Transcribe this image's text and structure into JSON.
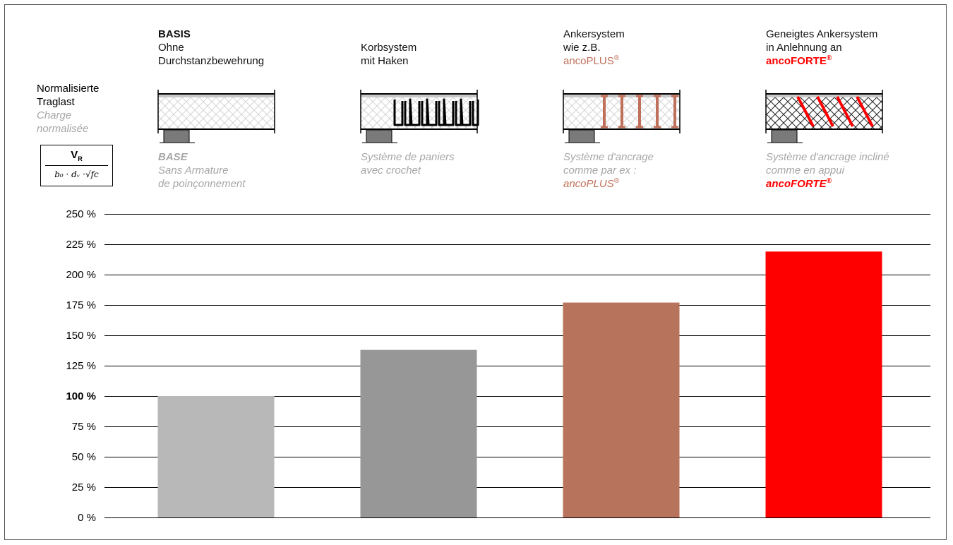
{
  "chart_data": {
    "type": "bar",
    "ylabel": {
      "de_lines": [
        "Normalisierte",
        "Traglast"
      ],
      "fr_lines": [
        "Charge",
        "normalisée"
      ],
      "formula_numerator": "V",
      "formula_numerator_sub": "R",
      "formula_denominator": "b₀ · dᵥ ·√fc"
    },
    "yticks": [
      "0 %",
      "25 %",
      "50 %",
      "75 %",
      "100 %",
      "125 %",
      "150 %",
      "175 %",
      "200 %",
      "225 %",
      "250 %"
    ],
    "ytick_values": [
      0,
      25,
      50,
      75,
      100,
      125,
      150,
      175,
      200,
      225,
      250
    ],
    "ytick_bold": "100 %",
    "ylim": [
      0,
      250
    ],
    "grid": true,
    "values": [
      100,
      138,
      177,
      219
    ],
    "colors": [
      "#b8b8b8",
      "#979797",
      "#b8735c",
      "#ff0000"
    ],
    "categories": [
      {
        "de_lines": [
          {
            "text": "BASIS",
            "bold": true
          },
          {
            "text": "Ohne"
          },
          {
            "text": "Durchstanzbewehrung"
          }
        ],
        "fr_lines": [
          {
            "text": "BASE",
            "bold": true
          },
          {
            "text": "Sans Armature"
          },
          {
            "text": "de poinçonnement"
          }
        ],
        "diagram": "base-slab"
      },
      {
        "de_lines": [
          {
            "text": "Korbsystem"
          },
          {
            "text": "mit Haken"
          }
        ],
        "fr_lines": [
          {
            "text": "Système de paniers"
          },
          {
            "text": "avec crochet"
          }
        ],
        "diagram": "basket-hooks"
      },
      {
        "de_lines": [
          {
            "text": "Ankersystem"
          },
          {
            "text": "wie z.B."
          },
          {
            "text": "ancoPLUS",
            "brand": true,
            "color": "#c0705a",
            "reg": "®"
          }
        ],
        "fr_lines": [
          {
            "text": "Système d'ancrage"
          },
          {
            "text": "comme par ex :"
          },
          {
            "text": "ancoPLUS",
            "brand": true,
            "color": "#c0705a",
            "reg": "®"
          }
        ],
        "diagram": "vertical-anchors"
      },
      {
        "de_lines": [
          {
            "text": "Geneigtes Ankersystem"
          },
          {
            "text": "in Anlehnung an"
          },
          {
            "text": "ancoFORTE",
            "brand": true,
            "bold": true,
            "color": "#ff0000",
            "reg": "®"
          }
        ],
        "fr_lines": [
          {
            "text": "Système d'ancrage incliné"
          },
          {
            "text": "comme en appui"
          },
          {
            "text": "ancoFORTE",
            "brand": true,
            "bold": true,
            "color": "#ff0000",
            "reg": "®"
          }
        ],
        "diagram": "inclined-anchors"
      }
    ]
  }
}
